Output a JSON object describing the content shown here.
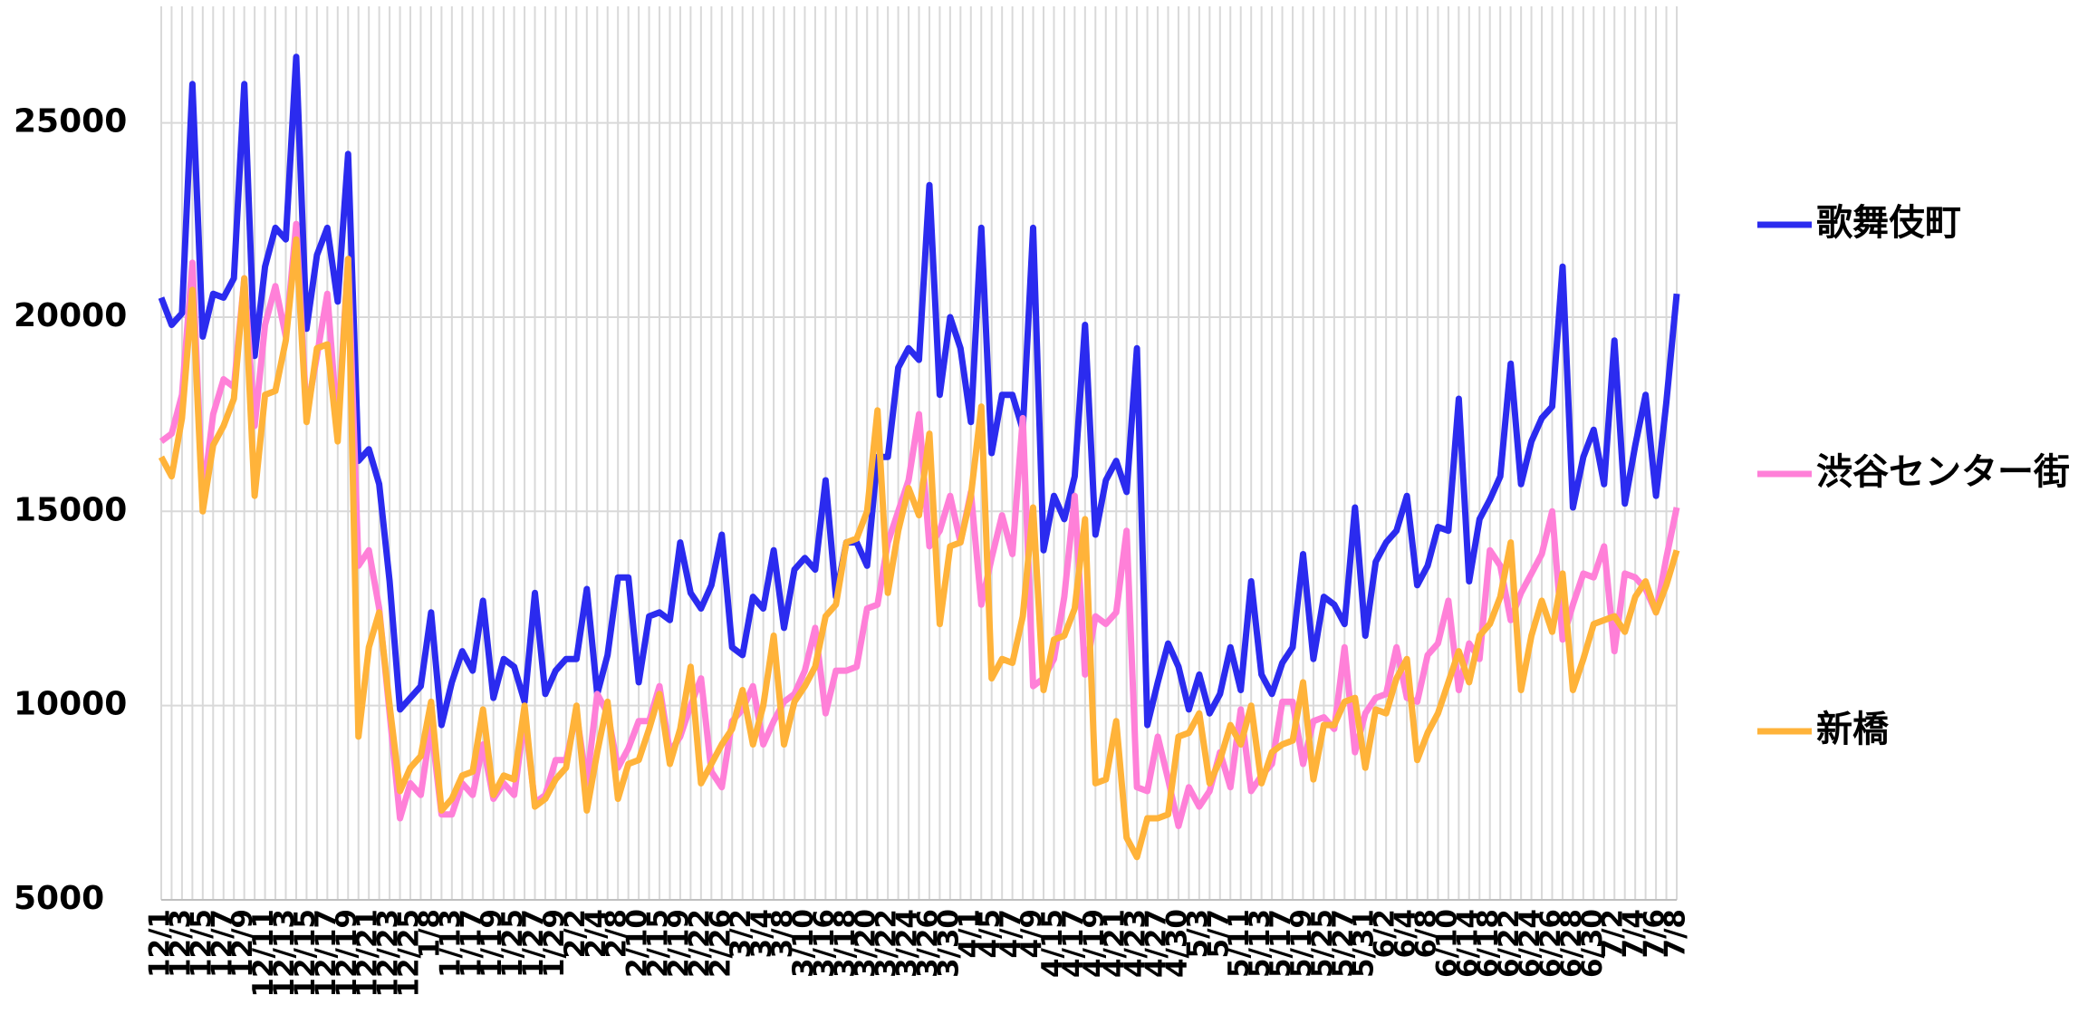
{
  "chart_data": {
    "type": "line",
    "categories": [
      "12/1",
      null,
      "12/3",
      null,
      "12/5",
      null,
      "12/7",
      null,
      "12/9",
      null,
      "12/11",
      null,
      "12/13",
      null,
      "12/15",
      null,
      "12/17",
      null,
      "12/19",
      null,
      "12/21",
      null,
      "12/23",
      null,
      "12/25",
      null,
      "1/8",
      null,
      "1/13",
      null,
      "1/17",
      null,
      "1/19",
      null,
      "1/25",
      null,
      "1/27",
      null,
      "1/29",
      null,
      "2/2",
      null,
      "2/4",
      null,
      "2/8",
      null,
      "2/10",
      null,
      "2/15",
      null,
      "2/19",
      null,
      "2/22",
      null,
      "2/26",
      null,
      "3/2",
      null,
      "3/4",
      null,
      "3/8",
      null,
      "3/10",
      null,
      "3/16",
      null,
      "3/18",
      null,
      "3/20",
      null,
      "3/22",
      null,
      "3/24",
      null,
      "3/26",
      null,
      "3/30",
      null,
      "4/1",
      null,
      "4/5",
      null,
      "4/7",
      null,
      "4/9",
      null,
      "4/15",
      null,
      "4/17",
      null,
      "4/19",
      null,
      "4/21",
      null,
      "4/23",
      null,
      "4/27",
      null,
      "4/30",
      null,
      "5/3",
      null,
      "5/7",
      null,
      "5/11",
      null,
      "5/13",
      null,
      "5/17",
      null,
      "5/19",
      null,
      "5/25",
      null,
      "5/27",
      null,
      "5/31",
      null,
      "6/2",
      null,
      "6/4",
      null,
      "6/8",
      null,
      "6/10",
      null,
      "6/14",
      null,
      "6/18",
      null,
      "6/22",
      null,
      "6/24",
      null,
      "6/26",
      null,
      "6/28",
      null,
      "6/30",
      null,
      "7/2",
      null,
      "7/4",
      null,
      "7/6",
      null,
      "7/8"
    ],
    "series": [
      {
        "name": "歌舞伎町",
        "color": "#2b2bef",
        "values": [
          20500,
          19800,
          20100,
          26000,
          19500,
          20600,
          20500,
          21000,
          26000,
          19000,
          21300,
          22300,
          22000,
          26700,
          19700,
          21600,
          22300,
          20400,
          24200,
          16300,
          16600,
          15700,
          13200,
          9900,
          10200,
          10500,
          12400,
          9500,
          10600,
          11400,
          10900,
          12700,
          10200,
          11200,
          11000,
          10100,
          12900,
          10300,
          10900,
          11200,
          11200,
          13000,
          10300,
          11300,
          13300,
          13300,
          10600,
          12300,
          12400,
          12200,
          14200,
          12900,
          12500,
          13100,
          14400,
          11500,
          11300,
          12800,
          12500,
          14000,
          12000,
          13500,
          13800,
          13500,
          15800,
          12800,
          14200,
          14200,
          13600,
          16400,
          16400,
          18700,
          19200,
          18900,
          23400,
          18000,
          20000,
          19200,
          17300,
          22300,
          16500,
          18000,
          18000,
          17100,
          22300,
          14000,
          15400,
          14800,
          15900,
          19800,
          14400,
          15800,
          16300,
          15500,
          19200,
          9500,
          10600,
          11600,
          11000,
          9900,
          10800,
          9800,
          10300,
          11500,
          10400,
          13200,
          10800,
          10300,
          11100,
          11500,
          13900,
          11200,
          12800,
          12600,
          12100,
          15100,
          11800,
          13700,
          14200,
          14500,
          15400,
          13100,
          13600,
          14600,
          14500,
          17900,
          13200,
          14800,
          15300,
          15900,
          18800,
          15700,
          16800,
          17400,
          17700,
          21300,
          15100,
          16400,
          17100,
          15700,
          19400,
          15200,
          16700,
          18000,
          15400,
          17800,
          20600
        ]
      },
      {
        "name": "渋谷センター街",
        "color": "#ff80d8",
        "values": [
          16800,
          17000,
          18000,
          21400,
          15300,
          17500,
          18400,
          18200,
          21000,
          17200,
          19800,
          20800,
          19500,
          22400,
          17500,
          19000,
          20600,
          17100,
          21500,
          13600,
          14000,
          12500,
          9800,
          7100,
          8000,
          7700,
          9500,
          7200,
          7200,
          8000,
          7700,
          9000,
          7600,
          8000,
          7700,
          9700,
          7500,
          7700,
          8600,
          8600,
          9800,
          8000,
          10300,
          9800,
          8400,
          8900,
          9600,
          9600,
          10500,
          8800,
          9200,
          10000,
          10700,
          8300,
          7900,
          9600,
          9900,
          10500,
          9000,
          9600,
          10100,
          10300,
          10900,
          12000,
          9800,
          10900,
          10900,
          11000,
          12500,
          12600,
          14200,
          15000,
          15800,
          17500,
          14100,
          14500,
          15400,
          14200,
          15500,
          12600,
          13800,
          14900,
          13900,
          17400,
          10500,
          10700,
          11200,
          12800,
          15400,
          10800,
          12300,
          12100,
          12400,
          14500,
          7900,
          7800,
          9200,
          8100,
          6900,
          7900,
          7400,
          7800,
          8800,
          7900,
          9900,
          7800,
          8200,
          8500,
          10100,
          10100,
          8500,
          9600,
          9700,
          9400,
          11500,
          8800,
          9800,
          10200,
          10300,
          11500,
          10200,
          10100,
          11300,
          11600,
          12700,
          10400,
          11600,
          11200,
          14000,
          13600,
          12200,
          12900,
          13400,
          13900,
          15000,
          11700,
          12600,
          13400,
          13300,
          14100,
          11400,
          13400,
          13300,
          13000,
          12400,
          13800,
          15100
        ]
      },
      {
        "name": "新橋",
        "color": "#ffb33a",
        "values": [
          16400,
          15900,
          17400,
          20700,
          15000,
          16700,
          17200,
          17900,
          21000,
          15400,
          18000,
          18100,
          19400,
          22000,
          17300,
          19200,
          19300,
          16800,
          21500,
          9200,
          11500,
          12400,
          10000,
          7800,
          8400,
          8700,
          10100,
          7300,
          7600,
          8200,
          8300,
          9900,
          7700,
          8200,
          8100,
          10000,
          7400,
          7600,
          8100,
          8400,
          10000,
          7300,
          8800,
          10100,
          7600,
          8500,
          8600,
          9400,
          10300,
          8500,
          9400,
          11000,
          8000,
          8500,
          9000,
          9400,
          10400,
          9000,
          10000,
          11800,
          9000,
          10100,
          10500,
          11000,
          12300,
          12600,
          14200,
          14300,
          15000,
          17600,
          12900,
          14500,
          15600,
          14900,
          17000,
          12100,
          14100,
          14200,
          15400,
          17700,
          10700,
          11200,
          11100,
          12300,
          15100,
          10400,
          11700,
          11800,
          12500,
          14800,
          8000,
          8100,
          9600,
          6600,
          6100,
          7100,
          7100,
          7200,
          9200,
          9300,
          9800,
          8000,
          8600,
          9500,
          9000,
          10000,
          8000,
          8800,
          9000,
          9100,
          10600,
          8100,
          9500,
          9500,
          10100,
          10200,
          8400,
          9900,
          9800,
          10700,
          11200,
          8600,
          9300,
          9800,
          10600,
          11400,
          10600,
          11800,
          12100,
          12800,
          14200,
          10400,
          11800,
          12700,
          11900,
          13400,
          10400,
          11200,
          12100,
          12200,
          12300,
          11900,
          12800,
          13200,
          12400,
          13100,
          14000
        ]
      }
    ],
    "ylim": [
      5000,
      28000
    ],
    "yticks": [
      5000,
      10000,
      15000,
      20000,
      25000
    ],
    "grid": true,
    "legend": "right"
  }
}
